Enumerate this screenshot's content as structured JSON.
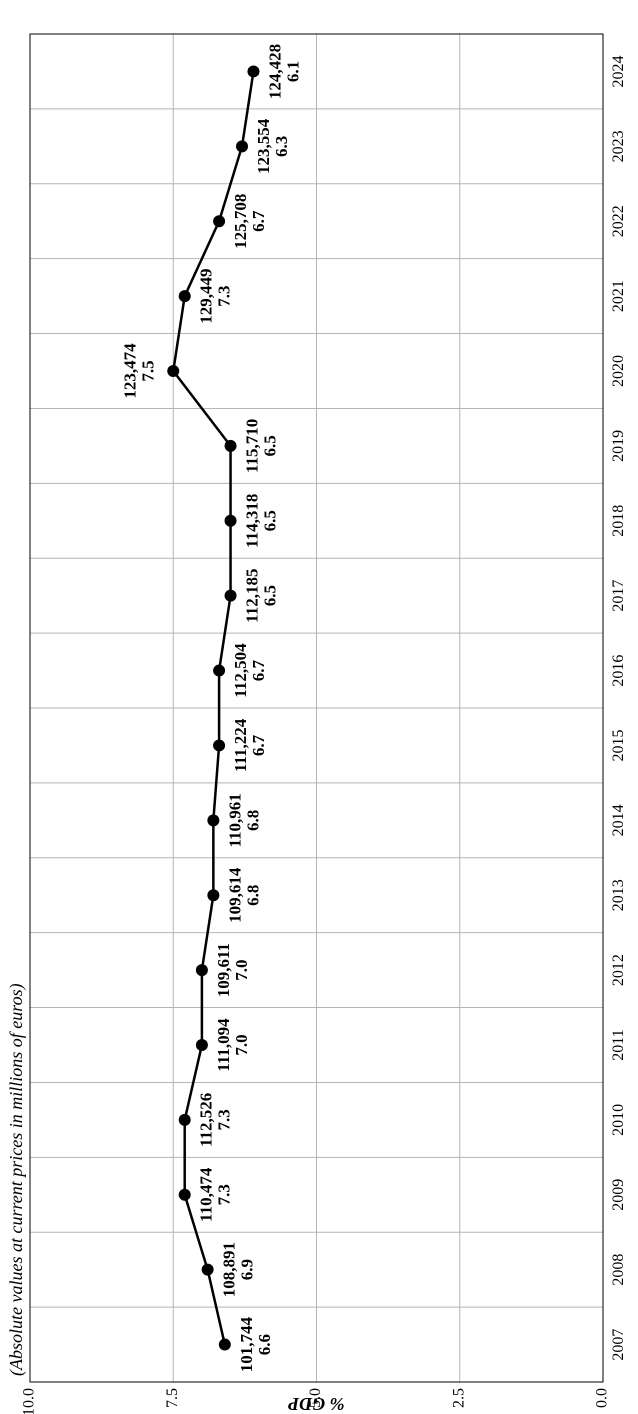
{
  "chart_data": {
    "type": "line",
    "subtitle": "(Absolute values at current prices in millions of euros)",
    "ylabel": "% GDP",
    "xlabel": "",
    "ylim": [
      0,
      10
    ],
    "yticks": [
      "0.0",
      "2.5",
      "5.0",
      "7.5",
      "10.0"
    ],
    "ytick_values": [
      0,
      2.5,
      5.0,
      7.5,
      10.0
    ],
    "grid": true,
    "categories": [
      "2007",
      "2008",
      "2009",
      "2010",
      "2011",
      "2012",
      "2013",
      "2014",
      "2015",
      "2016",
      "2017",
      "2018",
      "2019",
      "2020",
      "2021",
      "2022",
      "2023",
      "2024"
    ],
    "series": [
      {
        "values": [
          6.6,
          6.9,
          7.3,
          7.3,
          7.0,
          7.0,
          6.8,
          6.8,
          6.7,
          6.7,
          6.5,
          6.5,
          6.5,
          7.5,
          7.3,
          6.7,
          6.3,
          6.1
        ],
        "value_labels": [
          "6.6",
          "6.9",
          "7.3",
          "7.3",
          "7.0",
          "7.0",
          "6.8",
          "6.8",
          "6.7",
          "6.7",
          "6.5",
          "6.5",
          "6.5",
          "7.5",
          "7.3",
          "6.7",
          "6.3",
          "6.1"
        ],
        "absolute_labels": [
          "101,744",
          "108,891",
          "110,474",
          "112,526",
          "111,094",
          "109,611",
          "109,614",
          "110,961",
          "111,224",
          "112,504",
          "112,185",
          "114,318",
          "115,710",
          "123,474",
          "129,449",
          "125,708",
          "123,554",
          "124,428"
        ]
      }
    ]
  }
}
